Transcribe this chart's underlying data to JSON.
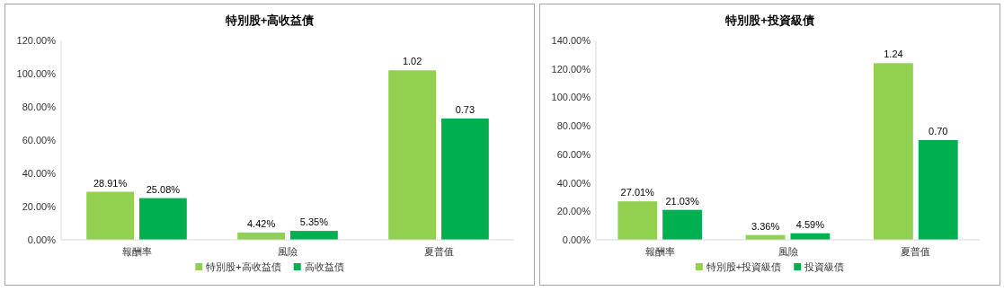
{
  "chart_data": [
    {
      "type": "bar",
      "title": "特別股+高收益債",
      "categories": [
        "報酬率",
        "風險",
        "夏普值"
      ],
      "series": [
        {
          "name": "特別股+高收益債",
          "color": "#92d050",
          "values": [
            0.2891,
            0.0442,
            1.02
          ],
          "value_labels": [
            "28.91%",
            "4.42%",
            "1.02"
          ]
        },
        {
          "name": "高收益債",
          "color": "#00b050",
          "values": [
            0.2508,
            0.0535,
            0.73
          ],
          "value_labels": [
            "25.08%",
            "5.35%",
            "0.73"
          ]
        }
      ],
      "ylim": [
        0,
        1.2
      ],
      "yticks": [
        {
          "value": 0,
          "label": "0.00%"
        },
        {
          "value": 0.2,
          "label": "20.00%"
        },
        {
          "value": 0.4,
          "label": "40.00%"
        },
        {
          "value": 0.6,
          "label": "60.00%"
        },
        {
          "value": 0.8,
          "label": "80.00%"
        },
        {
          "value": 1.0,
          "label": "100.00%"
        },
        {
          "value": 1.2,
          "label": "120.00%"
        }
      ],
      "legend": "bottom"
    },
    {
      "type": "bar",
      "title": "特別股+投資級債",
      "categories": [
        "報酬率",
        "風險",
        "夏普值"
      ],
      "series": [
        {
          "name": "特別股+投資級債",
          "color": "#92d050",
          "values": [
            0.2701,
            0.0336,
            1.24
          ],
          "value_labels": [
            "27.01%",
            "3.36%",
            "1.24"
          ]
        },
        {
          "name": "投資級債",
          "color": "#00b050",
          "values": [
            0.2103,
            0.0459,
            0.7
          ],
          "value_labels": [
            "21.03%",
            "4.59%",
            "0.70"
          ]
        }
      ],
      "ylim": [
        0,
        1.4
      ],
      "yticks": [
        {
          "value": 0,
          "label": "0.00%"
        },
        {
          "value": 0.2,
          "label": "20.00%"
        },
        {
          "value": 0.4,
          "label": "40.00%"
        },
        {
          "value": 0.6,
          "label": "60.00%"
        },
        {
          "value": 0.8,
          "label": "80.00%"
        },
        {
          "value": 1.0,
          "label": "100.00%"
        },
        {
          "value": 1.2,
          "label": "120.00%"
        },
        {
          "value": 1.4,
          "label": "140.00%"
        }
      ],
      "legend": "bottom"
    }
  ]
}
